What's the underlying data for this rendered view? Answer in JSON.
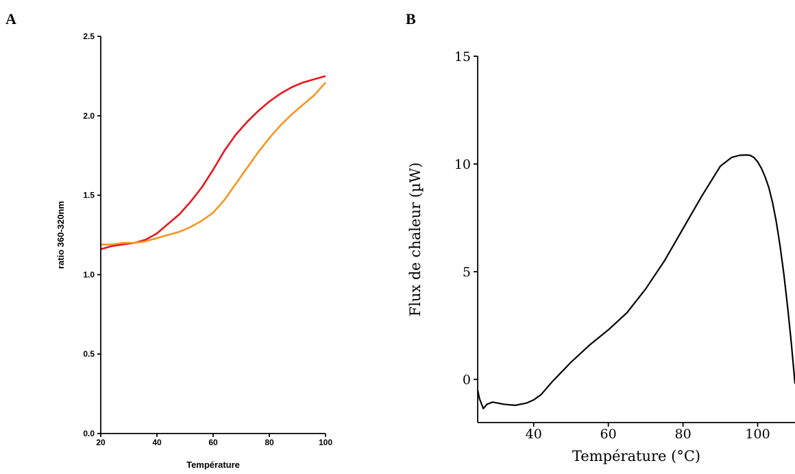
{
  "panels": {
    "a": "A",
    "b": "B"
  },
  "chart_data": [
    {
      "type": "line",
      "panel": "A",
      "xlabel": "Température",
      "ylabel": "ratio 360-320nm",
      "xlim": [
        20,
        100
      ],
      "ylim": [
        0.0,
        2.5
      ],
      "xticks": [
        20,
        40,
        60,
        80,
        100
      ],
      "xtick_labels": [
        "20",
        "40",
        "60",
        "80",
        "100"
      ],
      "yticks": [
        0.0,
        0.5,
        1.0,
        1.5,
        2.0,
        2.5
      ],
      "ytick_labels": [
        "0.0",
        "0.5",
        "1.0",
        "1.5",
        "2.0",
        "2.5"
      ],
      "grid": false,
      "series": [
        {
          "color": "#e8141b",
          "x": [
            20,
            24,
            28,
            32,
            36,
            40,
            44,
            48,
            52,
            56,
            60,
            64,
            68,
            72,
            76,
            80,
            84,
            88,
            92,
            96,
            100
          ],
          "y": [
            1.16,
            1.18,
            1.19,
            1.2,
            1.22,
            1.26,
            1.32,
            1.38,
            1.46,
            1.55,
            1.66,
            1.78,
            1.88,
            1.96,
            2.03,
            2.09,
            2.14,
            2.18,
            2.21,
            2.23,
            2.25
          ]
        },
        {
          "color": "#f7941d",
          "x": [
            20,
            24,
            28,
            32,
            36,
            40,
            44,
            48,
            52,
            56,
            60,
            64,
            68,
            72,
            76,
            80,
            84,
            88,
            92,
            96,
            100
          ],
          "y": [
            1.19,
            1.19,
            1.2,
            1.2,
            1.21,
            1.23,
            1.25,
            1.27,
            1.3,
            1.34,
            1.39,
            1.47,
            1.57,
            1.67,
            1.77,
            1.86,
            1.94,
            2.01,
            2.07,
            2.13,
            2.21
          ]
        }
      ]
    },
    {
      "type": "line",
      "panel": "B",
      "xlabel": "Température (°C)",
      "ylabel": "Flux de chaleur (µW)",
      "xlim": [
        25,
        110
      ],
      "ylim": [
        -2,
        15
      ],
      "xticks": [
        40,
        60,
        80,
        100
      ],
      "xtick_labels": [
        "40",
        "60",
        "80",
        "100"
      ],
      "yticks": [
        0,
        5,
        10,
        15
      ],
      "ytick_labels": [
        "0",
        "5",
        "10",
        "15"
      ],
      "grid": false,
      "series": [
        {
          "color": "#000000",
          "x": [
            25,
            25.5,
            26.5,
            27.5,
            29,
            32,
            35,
            38,
            40,
            42,
            45,
            50,
            55,
            60,
            65,
            70,
            75,
            80,
            85,
            90,
            93,
            95,
            97,
            98,
            99,
            100,
            101,
            102,
            103,
            104,
            105,
            106,
            107,
            108,
            109,
            110
          ],
          "y": [
            -0.5,
            -0.9,
            -1.35,
            -1.15,
            -1.05,
            -1.15,
            -1.2,
            -1.1,
            -0.95,
            -0.7,
            -0.1,
            0.8,
            1.6,
            2.3,
            3.1,
            4.2,
            5.5,
            7.0,
            8.5,
            9.9,
            10.3,
            10.4,
            10.42,
            10.4,
            10.3,
            10.1,
            9.8,
            9.4,
            8.9,
            8.2,
            7.3,
            6.2,
            4.9,
            3.4,
            1.7,
            -0.2
          ]
        }
      ]
    }
  ]
}
